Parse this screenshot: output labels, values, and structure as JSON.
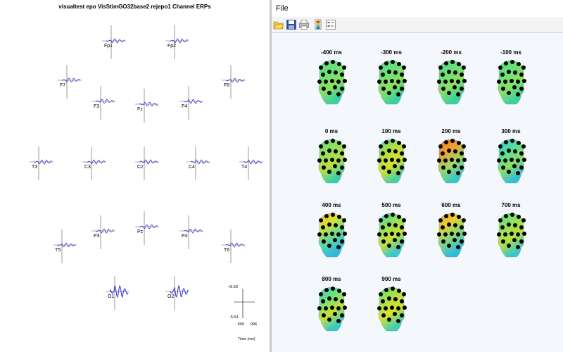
{
  "erp_window": {
    "title": "visualtest epo VisStimGO32base2 rejepo1  Channel ERPs",
    "trace_color": "#3b3bcf",
    "channels": [
      "Fp1",
      "Fp2",
      "F7",
      "F3",
      "Fz",
      "F4",
      "F8",
      "T3",
      "C3",
      "Cz",
      "C4",
      "T4",
      "T5",
      "P3",
      "Pz",
      "P4",
      "T6",
      "O1",
      "O2"
    ],
    "scale": {
      "ymax": "+5.53",
      "ymin": "-5.53",
      "xmin": "-500",
      "xmax": "996",
      "xlabel": "Time (ms)"
    }
  },
  "topo_window": {
    "menu": {
      "file": "File"
    },
    "toolbar": [
      "open-icon",
      "save-icon",
      "print-icon",
      "colorbar-icon",
      "legend-icon"
    ],
    "maps": [
      {
        "label": "-400 ms",
        "colors": [
          "#4ee08a",
          "#6ae07a",
          "#8ce060",
          "#3ad0a0"
        ]
      },
      {
        "label": "-300 ms",
        "colors": [
          "#4ee08a",
          "#6ae07a",
          "#8ce060",
          "#3ad0a0"
        ]
      },
      {
        "label": "-200 ms",
        "colors": [
          "#4ee08a",
          "#6ae07a",
          "#8ce060",
          "#3ad0a0"
        ]
      },
      {
        "label": "-100 ms",
        "colors": [
          "#4ee08a",
          "#6ae07a",
          "#8ce060",
          "#3ad0a0"
        ]
      },
      {
        "label": "0 ms",
        "colors": [
          "#5ee08a",
          "#8ee060",
          "#b8e040",
          "#38d0a8"
        ]
      },
      {
        "label": "100 ms",
        "colors": [
          "#44d8b8",
          "#b0e040",
          "#d8e030",
          "#4ad0a0"
        ]
      },
      {
        "label": "200 ms",
        "colors": [
          "#f07030",
          "#f0a030",
          "#9ed860",
          "#38c8c8"
        ]
      },
      {
        "label": "300 ms",
        "colors": [
          "#36c8d8",
          "#4ee0a0",
          "#8ee060",
          "#30c0d8"
        ]
      },
      {
        "label": "400 ms",
        "colors": [
          "#f0c030",
          "#d8e030",
          "#5ed8a0",
          "#30b8e0"
        ]
      },
      {
        "label": "500 ms",
        "colors": [
          "#36d0c8",
          "#8ee060",
          "#c8e038",
          "#38c8d0"
        ]
      },
      {
        "label": "600 ms",
        "colors": [
          "#f0a030",
          "#e8d030",
          "#7ed880",
          "#30b8e0"
        ]
      },
      {
        "label": "700 ms",
        "colors": [
          "#4ee08a",
          "#8ee060",
          "#b8e040",
          "#38c8c8"
        ]
      },
      {
        "label": "800 ms",
        "colors": [
          "#36c8d8",
          "#6ee080",
          "#c8e038",
          "#38c8c8"
        ]
      },
      {
        "label": "900 ms",
        "colors": [
          "#4ee08a",
          "#a8e048",
          "#d8e030",
          "#40d0b0"
        ]
      }
    ]
  }
}
